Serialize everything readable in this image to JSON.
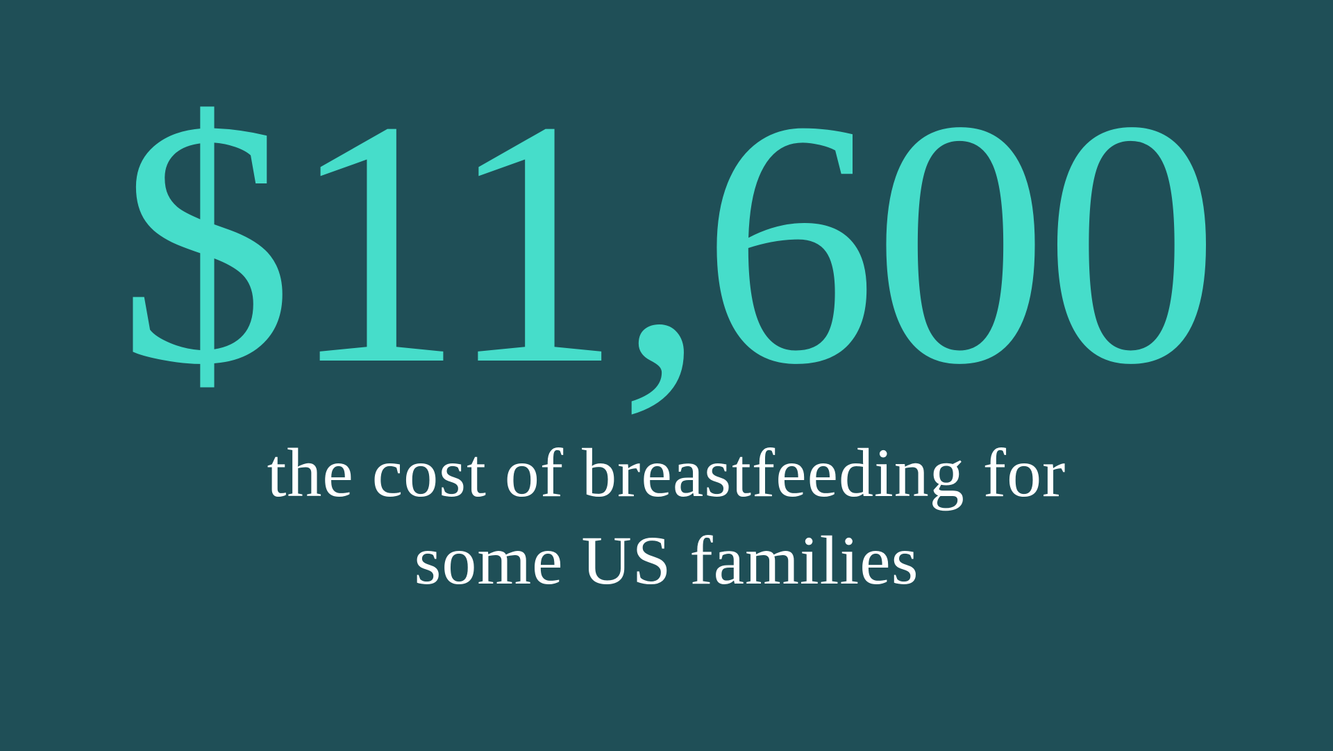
{
  "headline": {
    "amount": "$11,600",
    "caption_line1": "the cost of breastfeeding for",
    "caption_line2": "some US families"
  },
  "colors": {
    "background": "#1f4f57",
    "accent": "#46ddca",
    "caption_text": "#ffffff"
  }
}
